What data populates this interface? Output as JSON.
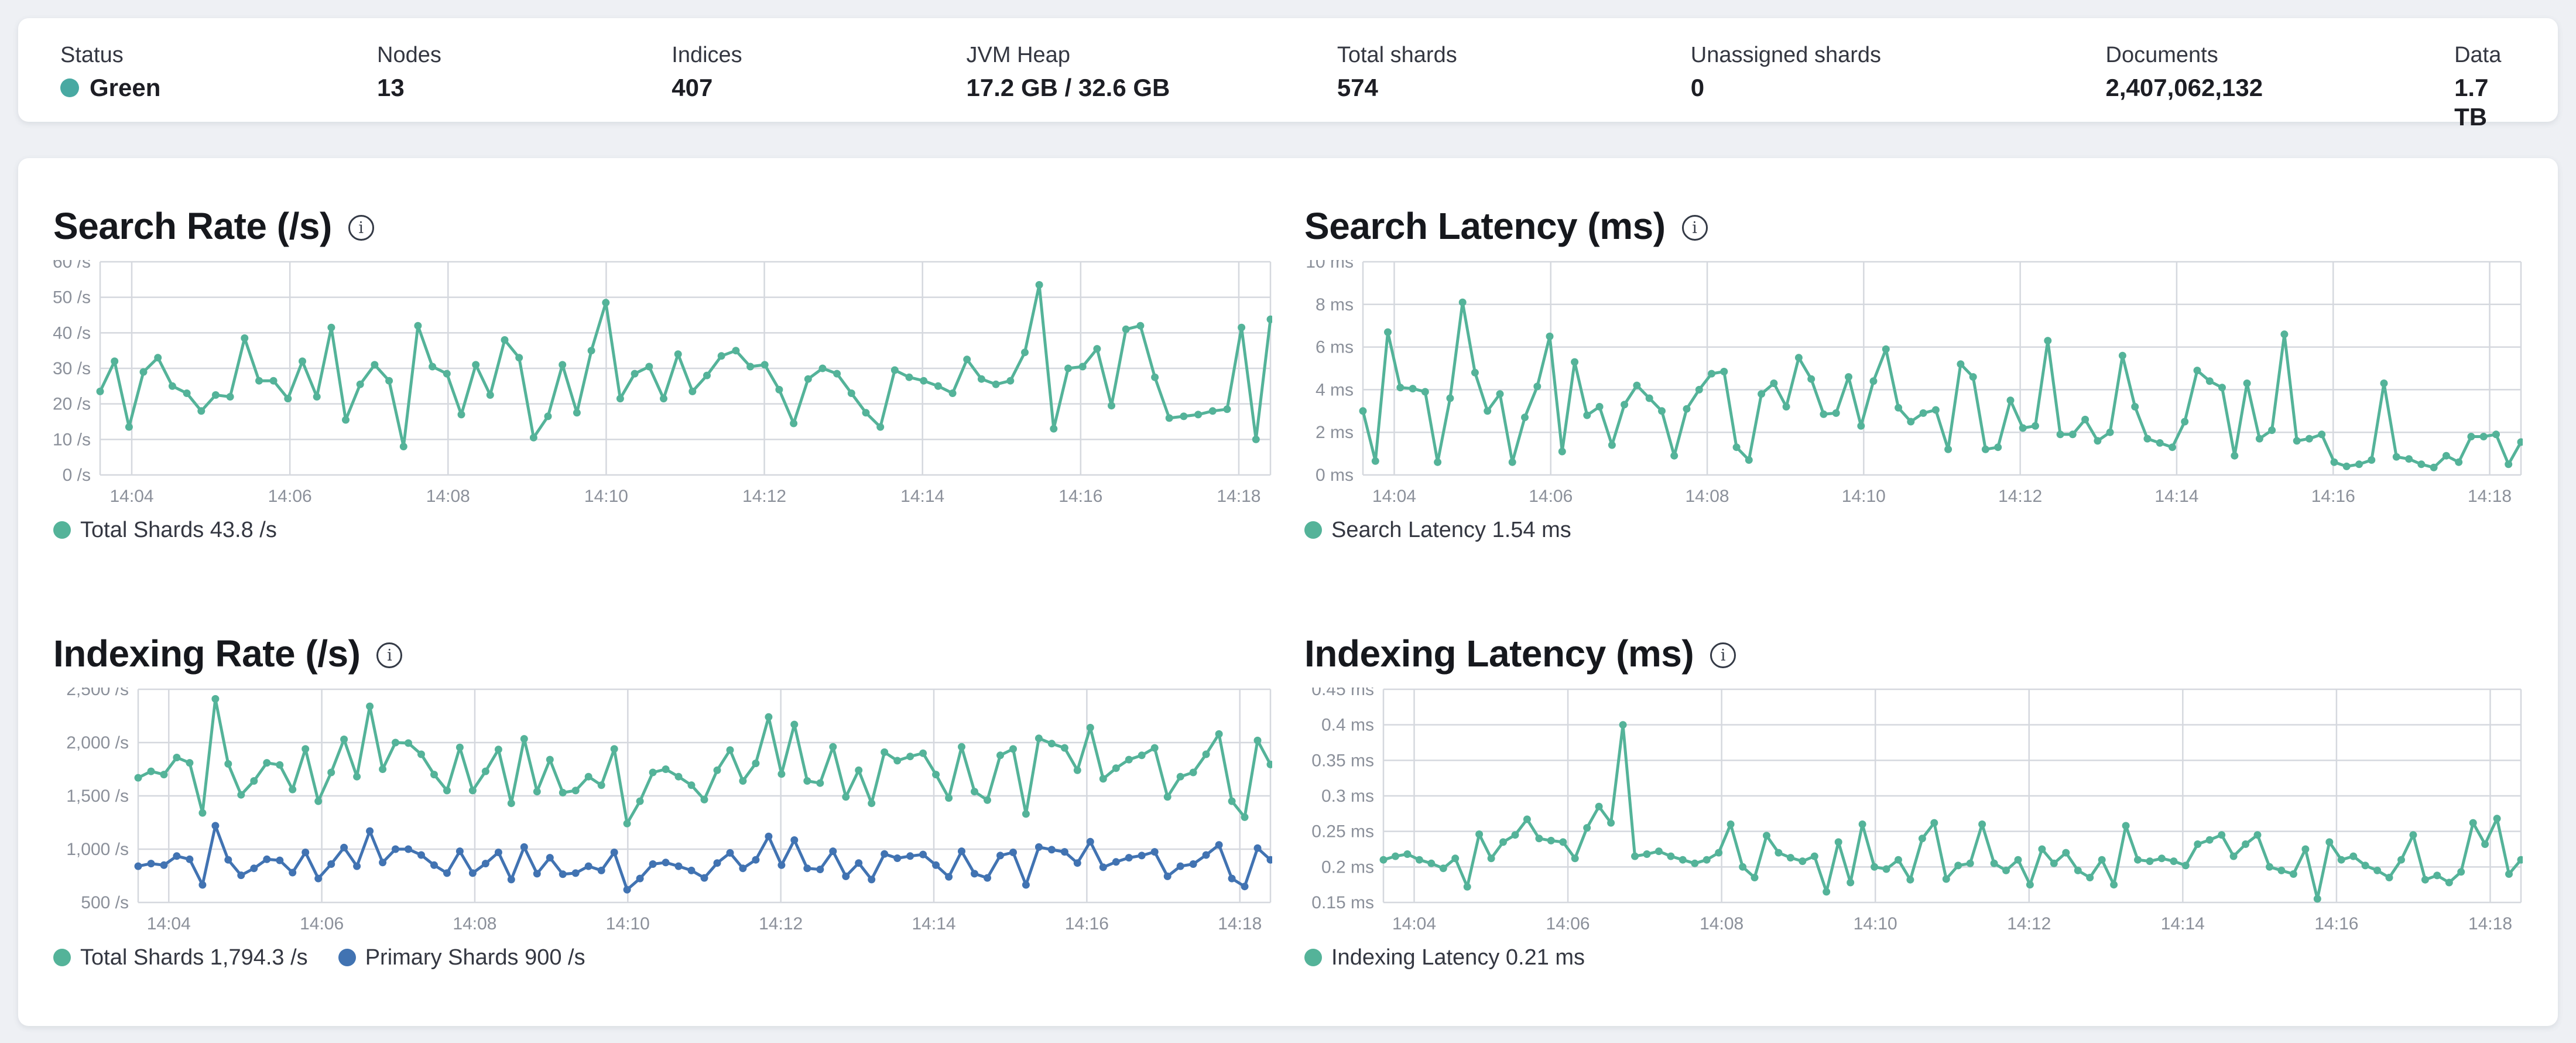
{
  "colors": {
    "background": "#eef0f4",
    "card": "#ffffff",
    "teal": "#54B399",
    "blue": "#4173B2",
    "status_green_dot": "#48A9A2",
    "grid": "#d5d8de",
    "axis_text": "#8b909a"
  },
  "header": {
    "stats": [
      {
        "label": "Status",
        "value": "Green",
        "has_dot": true,
        "dot_color": "#48A9A2"
      },
      {
        "label": "Nodes",
        "value": "13"
      },
      {
        "label": "Indices",
        "value": "407"
      },
      {
        "label": "JVM Heap",
        "value": "17.2 GB / 32.6 GB"
      },
      {
        "label": "Total shards",
        "value": "574"
      },
      {
        "label": "Unassigned shards",
        "value": "0"
      },
      {
        "label": "Documents",
        "value": "2,407,062,132"
      },
      {
        "label": "Data",
        "value": "1.7 TB"
      }
    ]
  },
  "chart_data": [
    {
      "type": "line",
      "title": "Search Rate (/s)",
      "ylabel": "/s",
      "ylim": [
        0,
        60
      ],
      "gutter": 80,
      "grid": true,
      "legend_position": "bottom",
      "yticks": [
        {
          "v": 0,
          "label": "0 /s"
        },
        {
          "v": 10,
          "label": "10 /s"
        },
        {
          "v": 20,
          "label": "20 /s"
        },
        {
          "v": 30,
          "label": "30 /s"
        },
        {
          "v": 40,
          "label": "40 /s"
        },
        {
          "v": 50,
          "label": "50 /s"
        },
        {
          "v": 60,
          "label": "60 /s"
        }
      ],
      "xticks": [
        "14:04",
        "14:06",
        "14:08",
        "14:10",
        "14:12",
        "14:14",
        "14:16",
        "14:18"
      ],
      "x_start_min": 3.6,
      "x_span_min": 14.8,
      "series": [
        {
          "name": "Total Shards",
          "legend": "Total Shards 43.8 /s",
          "color": "#54B399",
          "values": [
            23.5,
            32,
            13.5,
            29,
            33,
            25,
            23,
            18,
            22.5,
            22,
            38.5,
            26.5,
            26.5,
            21.5,
            32,
            22,
            41.5,
            15.5,
            25.5,
            31,
            26.5,
            8,
            42,
            30.5,
            28.5,
            17,
            31,
            22.5,
            38,
            33,
            10.5,
            16.5,
            31,
            17.5,
            35,
            48.5,
            21.5,
            28.5,
            30.5,
            21.5,
            34,
            23.5,
            28,
            33.5,
            35,
            30.5,
            31,
            24,
            14.5,
            27,
            30,
            28.5,
            23,
            17.5,
            13.5,
            29.5,
            27.5,
            26.5,
            25,
            23,
            32.5,
            27,
            25.5,
            26.5,
            34.5,
            53.5,
            13,
            30,
            30.5,
            35.5,
            19.5,
            41,
            42,
            27.5,
            16,
            16.5,
            17,
            18,
            18.5,
            41.5,
            10,
            43.8
          ]
        }
      ]
    },
    {
      "type": "line",
      "title": "Search Latency (ms)",
      "ylabel": "ms",
      "ylim": [
        0,
        10
      ],
      "gutter": 100,
      "grid": true,
      "legend_position": "bottom",
      "yticks": [
        {
          "v": 0,
          "label": "0 ms"
        },
        {
          "v": 2,
          "label": "2 ms"
        },
        {
          "v": 4,
          "label": "4 ms"
        },
        {
          "v": 6,
          "label": "6 ms"
        },
        {
          "v": 8,
          "label": "8 ms"
        },
        {
          "v": 10,
          "label": "10 ms"
        }
      ],
      "xticks": [
        "14:04",
        "14:06",
        "14:08",
        "14:10",
        "14:12",
        "14:14",
        "14:16",
        "14:18"
      ],
      "x_start_min": 3.6,
      "x_span_min": 14.8,
      "series": [
        {
          "name": "Search Latency",
          "legend": "Search Latency 1.54 ms",
          "color": "#54B399",
          "values": [
            3.0,
            0.65,
            6.7,
            4.1,
            4.05,
            3.9,
            0.6,
            3.6,
            8.1,
            4.8,
            3.0,
            3.8,
            0.6,
            2.7,
            4.15,
            6.5,
            1.1,
            5.3,
            2.8,
            3.2,
            1.4,
            3.3,
            4.2,
            3.6,
            3.0,
            0.9,
            3.1,
            4.0,
            4.75,
            4.85,
            1.3,
            0.7,
            3.8,
            4.3,
            3.2,
            5.5,
            4.5,
            2.85,
            2.9,
            4.6,
            2.3,
            4.4,
            5.9,
            3.15,
            2.5,
            2.9,
            3.05,
            1.2,
            5.2,
            4.6,
            1.2,
            1.3,
            3.5,
            2.2,
            2.3,
            6.3,
            1.9,
            1.9,
            2.6,
            1.6,
            2.0,
            5.6,
            3.2,
            1.7,
            1.5,
            1.3,
            2.5,
            4.9,
            4.4,
            4.1,
            0.9,
            4.3,
            1.7,
            2.1,
            6.6,
            1.6,
            1.7,
            1.9,
            0.6,
            0.4,
            0.5,
            0.7,
            4.3,
            0.85,
            0.75,
            0.5,
            0.35,
            0.9,
            0.6,
            1.8,
            1.8,
            1.9,
            0.5,
            1.54
          ]
        }
      ]
    },
    {
      "type": "line",
      "title": "Indexing Rate (/s)",
      "ylabel": "/s",
      "ylim": [
        500,
        2500
      ],
      "gutter": 145,
      "grid": true,
      "legend_position": "bottom",
      "yticks": [
        {
          "v": 500,
          "label": "500 /s"
        },
        {
          "v": 1000,
          "label": "1,000 /s"
        },
        {
          "v": 1500,
          "label": "1,500 /s"
        },
        {
          "v": 2000,
          "label": "2,000 /s"
        },
        {
          "v": 2500,
          "label": "2,500 /s"
        }
      ],
      "xticks": [
        "14:04",
        "14:06",
        "14:08",
        "14:10",
        "14:12",
        "14:14",
        "14:16",
        "14:18"
      ],
      "x_start_min": 3.6,
      "x_span_min": 14.8,
      "series": [
        {
          "name": "Total Shards",
          "legend": "Total Shards 1,794.3 /s",
          "color": "#54B399",
          "values": [
            1670,
            1730,
            1700,
            1860,
            1810,
            1340,
            2410,
            1800,
            1510,
            1640,
            1810,
            1790,
            1560,
            1940,
            1450,
            1720,
            2030,
            1680,
            2340,
            1750,
            2000,
            1995,
            1890,
            1700,
            1550,
            1955,
            1550,
            1730,
            1935,
            1430,
            2035,
            1540,
            1840,
            1530,
            1550,
            1680,
            1600,
            1940,
            1240,
            1450,
            1720,
            1750,
            1680,
            1600,
            1465,
            1740,
            1930,
            1640,
            1805,
            2240,
            1705,
            2170,
            1640,
            1620,
            1960,
            1490,
            1740,
            1430,
            1910,
            1830,
            1870,
            1900,
            1700,
            1480,
            1960,
            1540,
            1460,
            1880,
            1940,
            1330,
            2040,
            1990,
            1950,
            1740,
            2140,
            1660,
            1760,
            1840,
            1880,
            1950,
            1490,
            1680,
            1720,
            1890,
            2080,
            1450,
            1300,
            2020,
            1794.3
          ]
        },
        {
          "name": "Primary Shards",
          "legend": "Primary Shards 900 /s",
          "color": "#4173B2",
          "values": [
            840,
            865,
            850,
            935,
            905,
            665,
            1220,
            900,
            755,
            820,
            905,
            895,
            780,
            970,
            725,
            860,
            1015,
            840,
            1170,
            875,
            1000,
            1000,
            945,
            850,
            775,
            980,
            775,
            865,
            970,
            715,
            1020,
            770,
            920,
            765,
            775,
            840,
            800,
            970,
            620,
            725,
            860,
            875,
            840,
            800,
            730,
            870,
            965,
            820,
            900,
            1120,
            850,
            1085,
            820,
            810,
            980,
            745,
            870,
            715,
            955,
            915,
            935,
            950,
            850,
            740,
            980,
            770,
            730,
            940,
            970,
            665,
            1020,
            995,
            975,
            870,
            1070,
            830,
            880,
            920,
            940,
            975,
            745,
            840,
            860,
            945,
            1040,
            725,
            650,
            1010,
            900
          ]
        }
      ]
    },
    {
      "type": "line",
      "title": "Indexing Latency (ms)",
      "ylabel": "ms",
      "ylim": [
        0.15,
        0.45
      ],
      "gutter": 135,
      "grid": true,
      "legend_position": "bottom",
      "yticks": [
        {
          "v": 0.15,
          "label": "0.15 ms"
        },
        {
          "v": 0.2,
          "label": "0.2 ms"
        },
        {
          "v": 0.25,
          "label": "0.25 ms"
        },
        {
          "v": 0.3,
          "label": "0.3 ms"
        },
        {
          "v": 0.35,
          "label": "0.35 ms"
        },
        {
          "v": 0.4,
          "label": "0.4 ms"
        },
        {
          "v": 0.45,
          "label": "0.45 ms"
        }
      ],
      "xticks": [
        "14:04",
        "14:06",
        "14:08",
        "14:10",
        "14:12",
        "14:14",
        "14:16",
        "14:18"
      ],
      "x_start_min": 3.6,
      "x_span_min": 14.8,
      "series": [
        {
          "name": "Indexing Latency",
          "legend": "Indexing Latency 0.21 ms",
          "color": "#54B399",
          "values": [
            0.21,
            0.215,
            0.218,
            0.21,
            0.205,
            0.198,
            0.212,
            0.172,
            0.246,
            0.212,
            0.235,
            0.245,
            0.267,
            0.24,
            0.237,
            0.235,
            0.212,
            0.255,
            0.285,
            0.262,
            0.4,
            0.215,
            0.218,
            0.222,
            0.215,
            0.21,
            0.205,
            0.21,
            0.22,
            0.26,
            0.2,
            0.185,
            0.244,
            0.22,
            0.213,
            0.208,
            0.215,
            0.165,
            0.235,
            0.178,
            0.26,
            0.2,
            0.197,
            0.21,
            0.182,
            0.24,
            0.262,
            0.183,
            0.202,
            0.205,
            0.26,
            0.205,
            0.195,
            0.21,
            0.175,
            0.225,
            0.205,
            0.22,
            0.195,
            0.185,
            0.21,
            0.175,
            0.258,
            0.21,
            0.208,
            0.212,
            0.208,
            0.202,
            0.232,
            0.238,
            0.245,
            0.215,
            0.232,
            0.245,
            0.2,
            0.195,
            0.19,
            0.225,
            0.155,
            0.235,
            0.21,
            0.215,
            0.202,
            0.195,
            0.185,
            0.21,
            0.245,
            0.182,
            0.188,
            0.178,
            0.193,
            0.262,
            0.232,
            0.268,
            0.19,
            0.21
          ]
        }
      ]
    }
  ]
}
